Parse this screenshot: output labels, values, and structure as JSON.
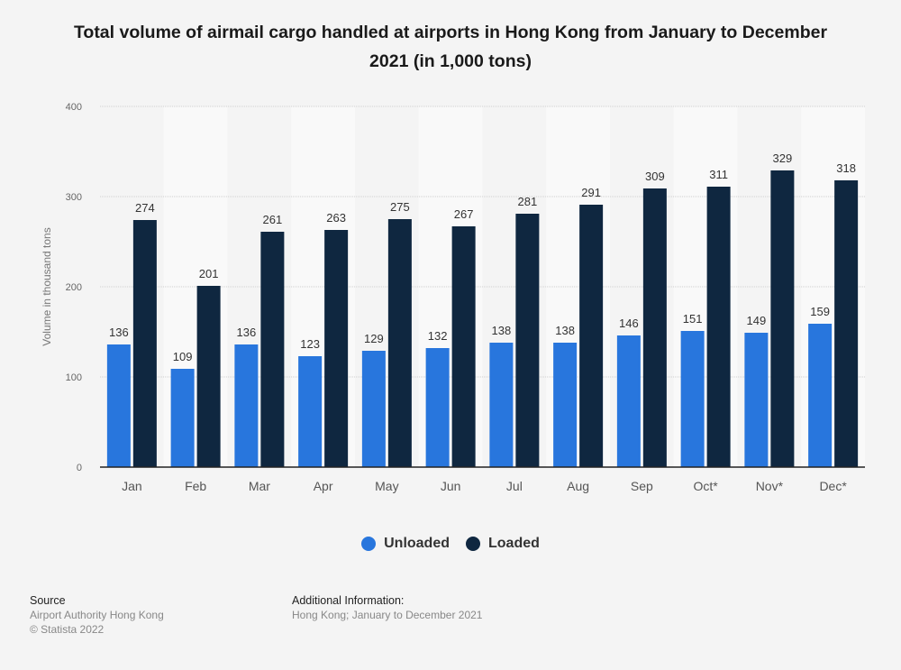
{
  "title": "Total volume of airmail cargo handled at airports in Hong Kong from January to December 2021 (in 1,000 tons)",
  "chart_data": {
    "type": "bar",
    "title": "Total volume of airmail cargo handled at airports in Hong Kong from January to December 2021 (in 1,000 tons)",
    "xlabel": "",
    "ylabel": "Volume in thousand tons",
    "ylim": [
      0,
      400
    ],
    "yticks": [
      0,
      100,
      200,
      300,
      400
    ],
    "grid": true,
    "legend_position": "bottom",
    "categories": [
      "Jan",
      "Feb",
      "Mar",
      "Apr",
      "May",
      "Jun",
      "Jul",
      "Aug",
      "Sep",
      "Oct*",
      "Nov*",
      "Dec*"
    ],
    "series": [
      {
        "name": "Unloaded",
        "color": "#2876dd",
        "values": [
          136,
          109,
          136,
          123,
          129,
          132,
          138,
          138,
          146,
          151,
          149,
          159
        ]
      },
      {
        "name": "Loaded",
        "color": "#0f2740",
        "values": [
          274,
          201,
          261,
          263,
          275,
          267,
          281,
          291,
          309,
          311,
          329,
          318
        ]
      }
    ]
  },
  "legend": [
    {
      "label": "Unloaded",
      "color": "#2876dd"
    },
    {
      "label": "Loaded",
      "color": "#0f2740"
    }
  ],
  "footer": {
    "source_heading": "Source",
    "source_lines": [
      "Airport Authority Hong Kong",
      "© Statista 2022"
    ],
    "info_heading": "Additional Information:",
    "info_lines": [
      "Hong Kong; January to December 2021"
    ]
  }
}
